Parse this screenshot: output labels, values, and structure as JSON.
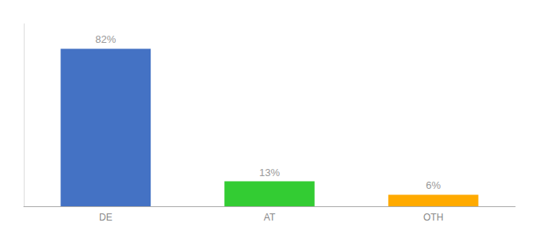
{
  "chart_data": {
    "type": "bar",
    "categories": [
      "DE",
      "AT",
      "OTH"
    ],
    "values": [
      82,
      13,
      6
    ],
    "value_labels": [
      "82%",
      "13%",
      "6%"
    ],
    "colors": [
      "#4472c4",
      "#33cc33",
      "#ffaa00"
    ],
    "ylim": [
      0,
      95
    ],
    "data_labels": true,
    "tick_labels": "x",
    "grid": false
  }
}
